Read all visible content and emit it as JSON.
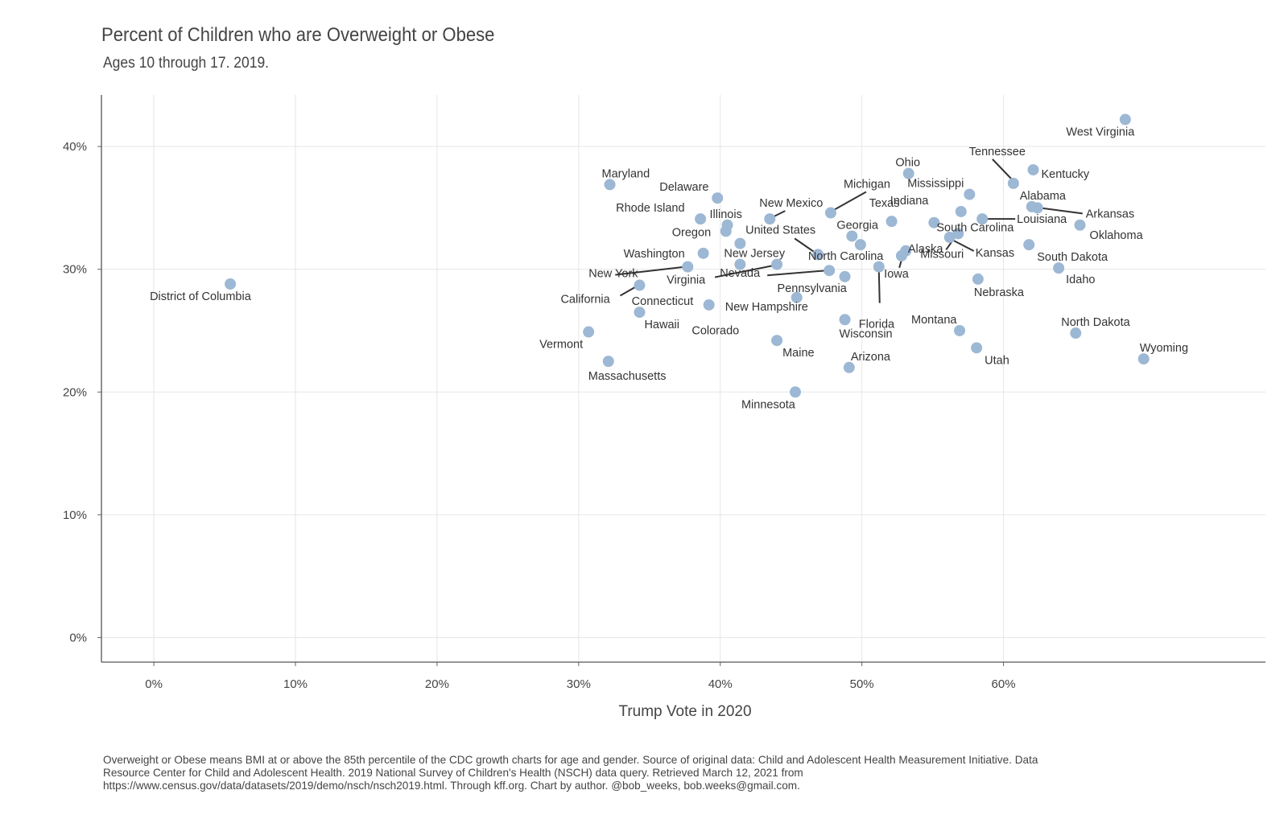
{
  "chart_data": {
    "type": "scatter",
    "title": "Percent of Children who are Overweight or Obese",
    "subtitle": "Ages 10 through 17. 2019.",
    "xlabel": "Trump Vote in 2020",
    "ylabel": "",
    "xlim": [
      -3.7,
      78.5
    ],
    "ylim": [
      -2,
      44.2
    ],
    "x_ticks": [
      "0%",
      "10%",
      "20%",
      "30%",
      "40%",
      "50%",
      "60%"
    ],
    "y_ticks": [
      "0%",
      "10%",
      "20%",
      "30%",
      "40%"
    ],
    "grid": true,
    "point_color": "#9db8d4",
    "caption": "Overweight or Obese means BMI at or above the 85th percentile of the CDC growth charts for age and gender. Source of original data: Child and Adolescent Health Measurement Initiative. Data Resource Center for Child and Adolescent Health. 2019 National Survey of Children's Health (NSCH) data query. Retrieved March 12, 2021 from https://www.census.gov/data/datasets/2019/demo/nsch/nsch2019.html. Through kff.org. Chart by author. @bob_weeks, bob.weeks@gmail.com.",
    "points": [
      {
        "label": "West Virginia",
        "x": 68.6,
        "y": 42.2
      },
      {
        "label": "Kentucky",
        "x": 62.1,
        "y": 38.1
      },
      {
        "label": "Ohio",
        "x": 53.3,
        "y": 37.8
      },
      {
        "label": "Maryland",
        "x": 32.2,
        "y": 36.9
      },
      {
        "label": "Tennessee",
        "x": 60.7,
        "y": 37.0
      },
      {
        "label": "Mississippi",
        "x": 57.6,
        "y": 36.1
      },
      {
        "label": "Delaware",
        "x": 39.8,
        "y": 35.8
      },
      {
        "label": "Alabama",
        "x": 62.0,
        "y": 35.1
      },
      {
        "label": "Arkansas",
        "x": 62.4,
        "y": 35.0
      },
      {
        "label": "Indiana",
        "x": 57.0,
        "y": 34.7
      },
      {
        "label": "Michigan",
        "x": 47.8,
        "y": 34.6
      },
      {
        "label": "Louisiana",
        "x": 58.5,
        "y": 34.1
      },
      {
        "label": "New Mexico",
        "x": 43.5,
        "y": 34.1
      },
      {
        "label": "Rhode Island",
        "x": 38.6,
        "y": 34.1
      },
      {
        "label": "Texas",
        "x": 52.1,
        "y": 33.9
      },
      {
        "label": "South Carolina",
        "x": 55.1,
        "y": 33.8
      },
      {
        "label": "Illinois",
        "x": 40.5,
        "y": 33.6
      },
      {
        "label": "Oklahoma",
        "x": 65.4,
        "y": 33.6
      },
      {
        "label": "Oregon",
        "x": 40.4,
        "y": 33.1
      },
      {
        "label": "Georgia",
        "x": 49.3,
        "y": 32.7
      },
      {
        "label": "Missouri",
        "x": 56.8,
        "y": 32.9
      },
      {
        "label": "Kansas",
        "x": 56.2,
        "y": 32.6
      },
      {
        "label": "United States",
        "x": 46.9,
        "y": 31.2
      },
      {
        "label": "North Carolina",
        "x": 49.9,
        "y": 32.0
      },
      {
        "label": "Alaska",
        "x": 52.8,
        "y": 31.1
      },
      {
        "label": "Colorado",
        "x": 41.4,
        "y": 32.1
      },
      {
        "label": "Washington",
        "x": 38.8,
        "y": 31.3
      },
      {
        "label": "South Dakota",
        "x": 61.8,
        "y": 32.0
      },
      {
        "label": "Iowa",
        "x": 53.1,
        "y": 31.5
      },
      {
        "label": "New Jersey",
        "x": 41.4,
        "y": 30.4
      },
      {
        "label": "Virginia",
        "x": 44.0,
        "y": 30.4
      },
      {
        "label": "New York",
        "x": 37.7,
        "y": 30.2
      },
      {
        "label": "Florida",
        "x": 51.2,
        "y": 30.2
      },
      {
        "label": "Nevada",
        "x": 47.7,
        "y": 29.9
      },
      {
        "label": "Idaho",
        "x": 63.9,
        "y": 30.1
      },
      {
        "label": "Pennsylvania",
        "x": 48.8,
        "y": 29.4
      },
      {
        "label": "Nebraska",
        "x": 58.2,
        "y": 29.2
      },
      {
        "label": "District of Columbia",
        "x": 5.4,
        "y": 28.8
      },
      {
        "label": "California",
        "x": 34.3,
        "y": 28.7
      },
      {
        "label": "Connecticut",
        "x": 39.2,
        "y": 27.1
      },
      {
        "label": "New Hampshire",
        "x": 45.4,
        "y": 27.7
      },
      {
        "label": "Hawaii",
        "x": 34.3,
        "y": 26.5
      },
      {
        "label": "Wisconsin",
        "x": 48.8,
        "y": 25.9
      },
      {
        "label": "Montana",
        "x": 56.9,
        "y": 25.0
      },
      {
        "label": "Vermont",
        "x": 30.7,
        "y": 24.9
      },
      {
        "label": "North Dakota",
        "x": 65.1,
        "y": 24.8
      },
      {
        "label": "Maine",
        "x": 44.0,
        "y": 24.2
      },
      {
        "label": "Utah",
        "x": 58.1,
        "y": 23.6
      },
      {
        "label": "Wyoming",
        "x": 69.9,
        "y": 22.7
      },
      {
        "label": "Massachusetts",
        "x": 32.1,
        "y": 22.5
      },
      {
        "label": "Arizona",
        "x": 49.1,
        "y": 22.0
      },
      {
        "label": "Minnesota",
        "x": 45.3,
        "y": 20.0
      }
    ]
  }
}
